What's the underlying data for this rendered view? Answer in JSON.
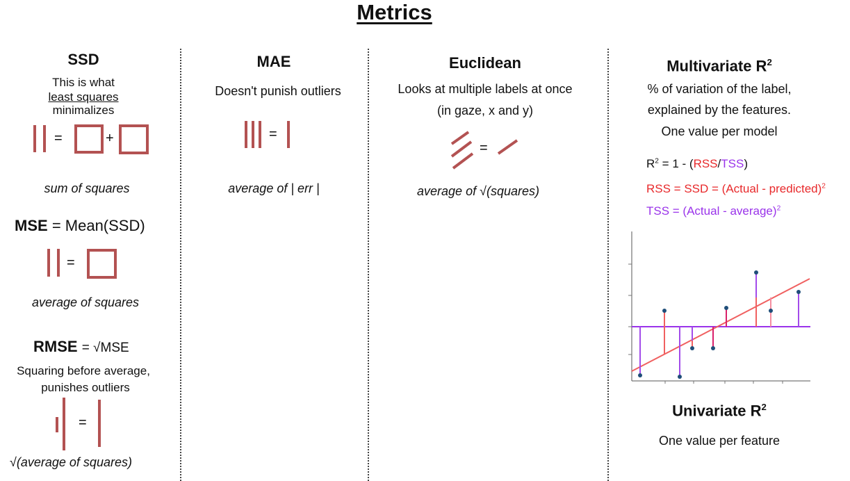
{
  "title": "Metrics",
  "ssd": {
    "heading": "SSD",
    "line1": "This is what",
    "line2": "least squares",
    "line3": "minimalizes",
    "eq_equals": "=",
    "eq_plus": "+",
    "caption": "sum of squares"
  },
  "mse": {
    "heading": "MSE",
    "def": "= Mean(SSD)",
    "eq_equals": "=",
    "caption": "average of squares"
  },
  "rmse": {
    "heading": "RMSE",
    "def": "= √MSE",
    "line1": "Squaring before average,",
    "line2": "punishes outliers",
    "eq_equals": "=",
    "caption": "√(average of squares)"
  },
  "mae": {
    "heading": "MAE",
    "desc": "Doesn't punish outliers",
    "eq_equals": "=",
    "caption": "average of | err |"
  },
  "euclidean": {
    "heading": "Euclidean",
    "line1": "Looks at multiple labels at once",
    "line2": "(in gaze, x and y)",
    "eq_equals": "=",
    "caption": "average of √(squares)"
  },
  "multivariate": {
    "heading": "Multivariate R",
    "heading_sup": "2",
    "line1": "% of variation of the label,",
    "line2": "explained by the features.",
    "line3": "One value per model",
    "f1_r": "R",
    "f1_sup": "2",
    "f1_a": " = 1 - (",
    "f1_rss": "RSS",
    "f1_slash": "/",
    "f1_tss": "TSS",
    "f1_close": ")",
    "f2": "RSS = SSD = (Actual - predicted)",
    "f2_sup": "2",
    "f3": "TSS = (Actual - average)",
    "f3_sup": "2",
    "colors": {
      "rss": "#e8292b",
      "tss": "#9a33ea",
      "bars": "#b35252"
    }
  },
  "univariate": {
    "heading": "Univariate R",
    "heading_sup": "2",
    "desc": "One value per feature"
  }
}
